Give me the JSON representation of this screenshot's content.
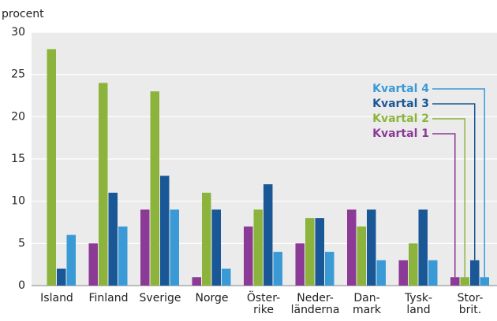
{
  "chart_data": {
    "type": "bar",
    "y_label": "procent",
    "categories": [
      "Island",
      "Finland",
      "Sverige",
      "Norge",
      "Öster-\nrike",
      "Neder-\nländerna",
      "Dan-\nmark",
      "Tysk-\nland",
      "Stor-\nbrit."
    ],
    "series": [
      {
        "name": "Kvartal 1",
        "color": "#8b3a96",
        "values": [
          0,
          5,
          9,
          1,
          7,
          5,
          9,
          3,
          1
        ]
      },
      {
        "name": "Kvartal 2",
        "color": "#8cb43c",
        "values": [
          28,
          24,
          23,
          11,
          9,
          8,
          7,
          5,
          1
        ]
      },
      {
        "name": "Kvartal 3",
        "color": "#1a5797",
        "values": [
          2,
          11,
          13,
          9,
          12,
          8,
          9,
          9,
          3
        ]
      },
      {
        "name": "Kvartal 4",
        "color": "#3a9ad6",
        "values": [
          6,
          7,
          9,
          2,
          4,
          4,
          3,
          3,
          1
        ]
      }
    ],
    "ylim": [
      0,
      30
    ],
    "yticks": [
      0,
      5,
      10,
      15,
      20,
      25,
      30
    ],
    "grid": true,
    "legend": "callout"
  }
}
